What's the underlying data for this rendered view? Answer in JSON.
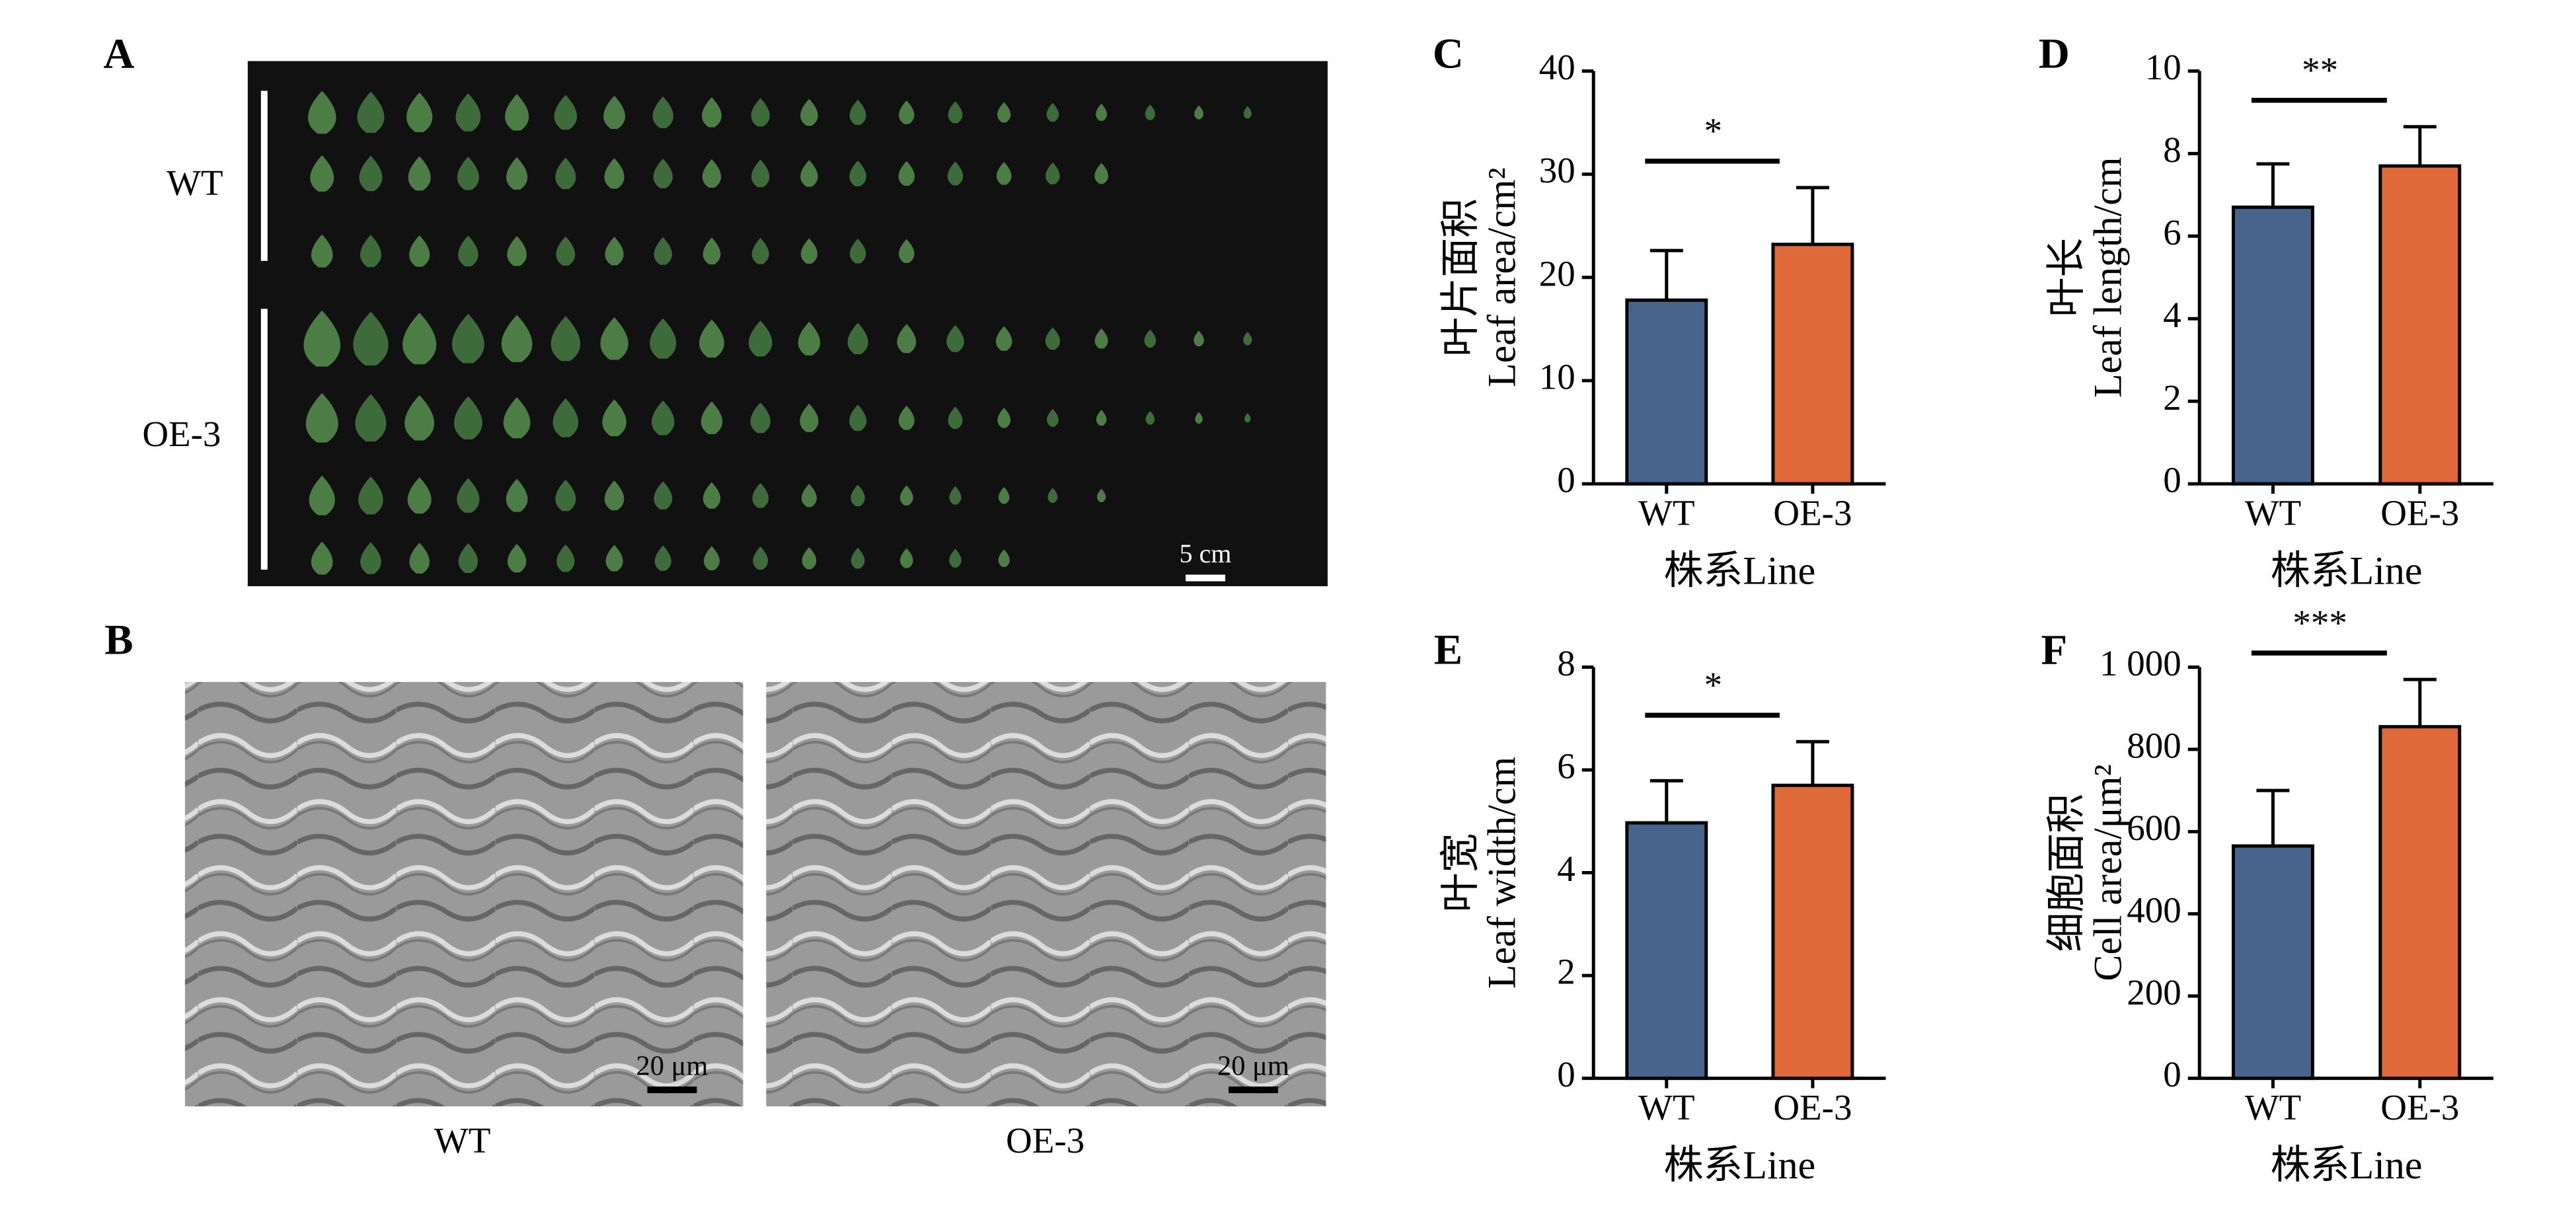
{
  "images": {
    "panel_a": "A",
    "panel_b": "B",
    "a_row_labels": [
      "WT",
      "OE-3"
    ],
    "a_scale": "5 cm",
    "b_scales": [
      "20 μm",
      "20 μm"
    ],
    "b_labels": [
      "WT",
      "OE-3"
    ]
  },
  "chart_data": [
    {
      "type": "bar",
      "panel": "C",
      "ylabel": [
        "叶片面积",
        "Leaf area/cm²"
      ],
      "xlabel": "株系Line",
      "categories": [
        "WT",
        "OE-3"
      ],
      "values": [
        17.8,
        23.2
      ],
      "errors": [
        4.8,
        5.5
      ],
      "colors": [
        "#46648c",
        "#e0693a"
      ],
      "annotation": "*",
      "ylim": [
        0,
        40
      ],
      "yticks": [
        0,
        10,
        20,
        30,
        40
      ]
    },
    {
      "type": "bar",
      "panel": "D",
      "ylabel": [
        "叶长",
        "Leaf length/cm"
      ],
      "xlabel": "株系Line",
      "categories": [
        "WT",
        "OE-3"
      ],
      "values": [
        6.7,
        7.7
      ],
      "errors": [
        1.05,
        0.95
      ],
      "colors": [
        "#46648c",
        "#e0693a"
      ],
      "annotation": "**",
      "ylim": [
        0,
        10
      ],
      "yticks": [
        0,
        2,
        4,
        6,
        8,
        10
      ]
    },
    {
      "type": "bar",
      "panel": "E",
      "ylabel": [
        "叶宽",
        "Leaf width/cm"
      ],
      "xlabel": "株系Line",
      "categories": [
        "WT",
        "OE-3"
      ],
      "values": [
        4.97,
        5.7
      ],
      "errors": [
        0.82,
        0.85
      ],
      "colors": [
        "#46648c",
        "#e0693a"
      ],
      "annotation": "*",
      "ylim": [
        0,
        8
      ],
      "yticks": [
        0,
        2,
        4,
        6,
        8
      ]
    },
    {
      "type": "bar",
      "panel": "F",
      "ylabel": [
        "细胞面积",
        "Cell area/μm²"
      ],
      "xlabel": "株系Line",
      "categories": [
        "WT",
        "OE-3"
      ],
      "values": [
        565,
        855
      ],
      "errors": [
        135,
        115
      ],
      "colors": [
        "#46648c",
        "#e0693a"
      ],
      "annotation": "***",
      "ylim": [
        0,
        1000
      ],
      "yticks": [
        0,
        200,
        400,
        600,
        800,
        {
          "value": 1000,
          "label": "1 000"
        }
      ]
    }
  ]
}
